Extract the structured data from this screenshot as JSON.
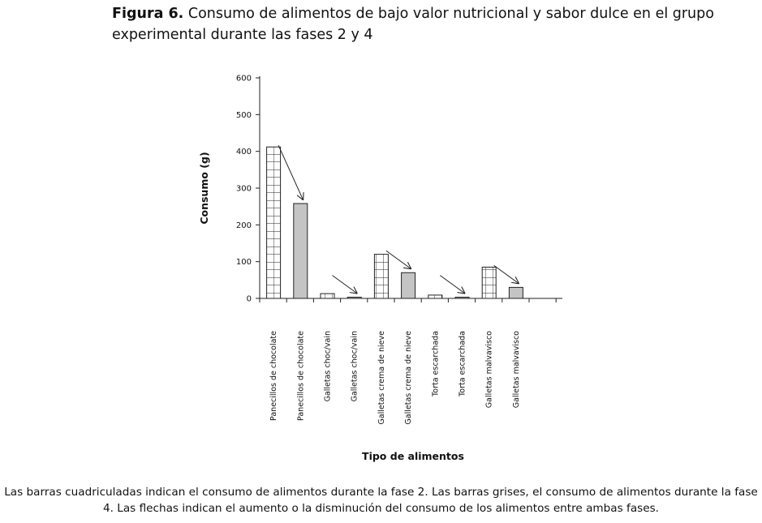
{
  "figure": {
    "label": "Figura 6.",
    "title": "Consumo de alimentos de bajo valor nutricional y sabor dulce en el grupo experimental durante las fases 2 y 4",
    "caption": "Las barras cuadriculadas indican el consumo de alimentos durante la fase 2. Las barras grises, el consumo de alimentos durante la fase 4. Las flechas indican el aumento o la disminución del consumo de los alimentos entre ambas fases."
  },
  "chart_data": {
    "type": "bar",
    "title": "Consumo de alimentos de bajo valor nutricional y sabor dulce en el grupo experimental durante las fases 2 y 4",
    "xlabel": "Tipo de alimentos",
    "ylabel": "Consumo (g)",
    "ylim": [
      0,
      600
    ],
    "yticks": [
      0,
      100,
      200,
      300,
      400,
      500,
      600
    ],
    "grid": false,
    "legend": "none",
    "categories": [
      "Panecillos de chocolate",
      "Panecillos de chocolate",
      "Galletas choc/vain",
      "Galletas choc/vain",
      "Galletas crema de nieve",
      "Galletas crema de nieve",
      "Torta escarchada",
      "Torta escarchada",
      "Galletas malvavisco",
      "Galletas malvavisco"
    ],
    "values": [
      412,
      258,
      13,
      3,
      120,
      70,
      9,
      3,
      85,
      30
    ],
    "phase": [
      "2",
      "4",
      "2",
      "4",
      "2",
      "4",
      "2",
      "4",
      "2",
      "4"
    ],
    "styles": {
      "phase2": {
        "fill": "#ffffff",
        "pattern": "grid"
      },
      "phase4": {
        "fill": "#c4c4c4",
        "pattern": "none"
      }
    },
    "annotations": "arrows from each phase-2 bar to the following phase-4 bar"
  }
}
